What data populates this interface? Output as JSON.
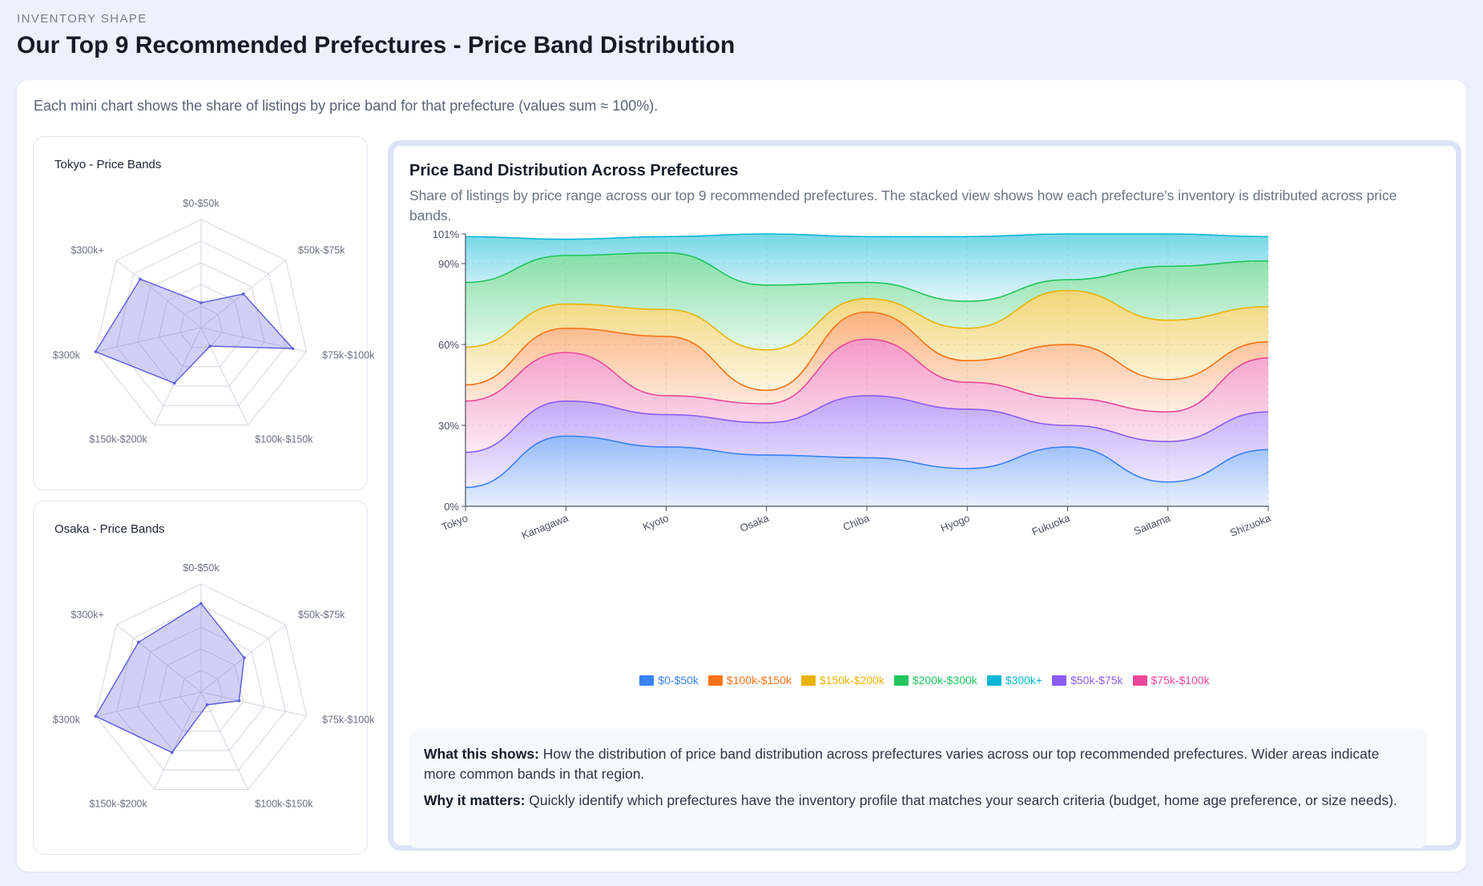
{
  "header": {
    "overline": "INVENTORY SHAPE",
    "title": "Our Top 9 Recommended Prefectures - Price Band Distribution"
  },
  "note": "Each mini chart shows the share of listings by price band for that prefecture (values sum ≈ 100%).",
  "mini_charts": [
    {
      "title": "Tokyo - Price Bands",
      "axes": [
        "$0-$50k",
        "$50k-$75k",
        "$75k-$100k",
        "$100k-$150k",
        "$150k-$200k",
        "$300k",
        "$300k+"
      ],
      "values": [
        0.23,
        0.5,
        0.87,
        0.19,
        0.57,
        1.0,
        0.72
      ]
    },
    {
      "title": "Osaka - Price Bands",
      "axes": [
        "$0-$50k",
        "$50k-$75k",
        "$75k-$100k",
        "$100k-$150k",
        "$150k-$200k",
        "$300k",
        "$300k+"
      ],
      "values": [
        0.82,
        0.51,
        0.36,
        0.13,
        0.62,
        1.0,
        0.74
      ]
    }
  ],
  "chart_data": {
    "type": "area",
    "stacked": true,
    "title": "Price Band Distribution Across Prefectures",
    "subtitle": "Share of listings by price range across our top 9 recommended prefectures. The stacked view shows how each prefecture's inventory is distributed across price bands.",
    "categories": [
      "Tokyo",
      "Kanagawa",
      "Kyoto",
      "Osaka",
      "Chiba",
      "Hyogo",
      "Fukuoka",
      "Saitama",
      "Shizuoka"
    ],
    "y_ticks": [
      "0%",
      "30%",
      "60%",
      "90%",
      "101%"
    ],
    "ylim": [
      0,
      101
    ],
    "grid": true,
    "legend_position": "bottom",
    "series": [
      {
        "name": "$0-$50k",
        "color": "#3b82f6",
        "values": [
          7,
          26,
          22,
          19,
          18,
          14,
          22,
          9,
          21
        ]
      },
      {
        "name": "$50k-$75k",
        "color": "#8b5cf6",
        "values": [
          13,
          13,
          12,
          12,
          23,
          22,
          8,
          15,
          14
        ]
      },
      {
        "name": "$75k-$100k",
        "color": "#ec4899",
        "values": [
          19,
          18,
          7,
          7,
          21,
          10,
          10,
          11,
          20
        ]
      },
      {
        "name": "$100k-$150k",
        "color": "#f97316",
        "values": [
          6,
          9,
          22,
          5,
          10,
          8,
          20,
          12,
          6
        ]
      },
      {
        "name": "$150k-$200k",
        "color": "#eab308",
        "values": [
          14,
          9,
          10,
          15,
          5,
          12,
          20,
          22,
          13
        ]
      },
      {
        "name": "$200k-$300k",
        "color": "#22c55e",
        "values": [
          24,
          18,
          21,
          24,
          6,
          10,
          4,
          20,
          17
        ]
      },
      {
        "name": "$300k+",
        "color": "#06b6d4",
        "values": [
          17,
          6,
          6,
          19,
          17,
          24,
          17,
          12,
          9
        ]
      }
    ],
    "legend_order": [
      "$0-$50k",
      "$100k-$150k",
      "$150k-$200k",
      "$200k-$300k",
      "$300k+",
      "$50k-$75k",
      "$75k-$100k"
    ]
  },
  "info": {
    "what_label": "What this shows:",
    "what_text": "How the distribution of price band distribution across prefectures varies across our top recommended prefectures. Wider areas indicate more common bands in that region.",
    "why_label": "Why it matters:",
    "why_text": "Quickly identify which prefectures have the inventory profile that matches your search criteria (budget, home age preference, or size needs)."
  }
}
